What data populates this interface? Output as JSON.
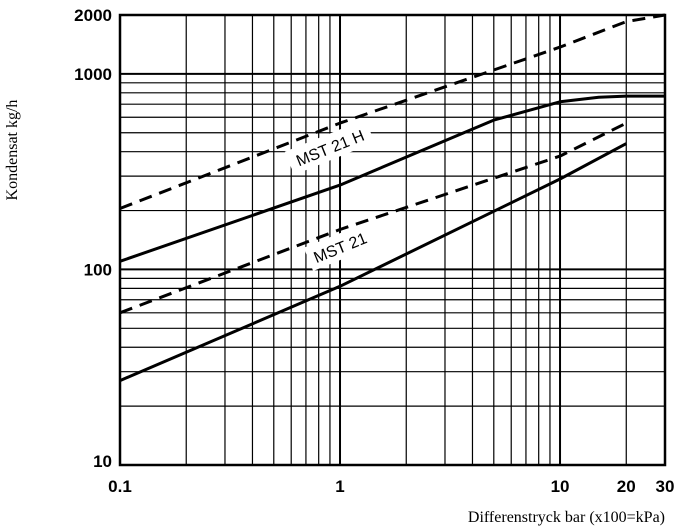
{
  "chart_data": {
    "type": "line",
    "x_scale": "log",
    "y_scale": "log",
    "xlim": [
      0.1,
      30
    ],
    "ylim": [
      10,
      2000
    ],
    "xlabel": "Differenstryck bar (x100=kPa)",
    "ylabel": "Kondensat kg/h",
    "x_ticks": [
      {
        "value": 0.1,
        "label": "0.1"
      },
      {
        "value": 1,
        "label": "1"
      },
      {
        "value": 10,
        "label": "10"
      },
      {
        "value": 20,
        "label": "20"
      },
      {
        "value": 30,
        "label": "30"
      }
    ],
    "y_ticks": [
      {
        "value": 10,
        "label": "10"
      },
      {
        "value": 100,
        "label": "100"
      },
      {
        "value": 1000,
        "label": "1000"
      },
      {
        "value": 2000,
        "label": "2000"
      }
    ],
    "grid": true,
    "series": [
      {
        "style": "dashed",
        "x": [
          0.1,
          1,
          10,
          20,
          30
        ],
        "y": [
          205,
          560,
          1370,
          1850,
          2000
        ]
      },
      {
        "style": "solid",
        "x": [
          0.1,
          1,
          5,
          10,
          15,
          20,
          30
        ],
        "y": [
          110,
          270,
          580,
          720,
          760,
          770,
          770
        ]
      },
      {
        "style": "dashed",
        "x": [
          0.1,
          1,
          10,
          20
        ],
        "y": [
          60,
          160,
          380,
          560
        ]
      },
      {
        "style": "solid",
        "x": [
          0.1,
          1,
          10,
          20
        ],
        "y": [
          27,
          82,
          290,
          440
        ]
      }
    ],
    "annotations": [
      {
        "text": "MST 21 H",
        "x": 0.9,
        "y": 420
      },
      {
        "text": "MST 21",
        "x": 1.0,
        "y": 130
      }
    ]
  }
}
